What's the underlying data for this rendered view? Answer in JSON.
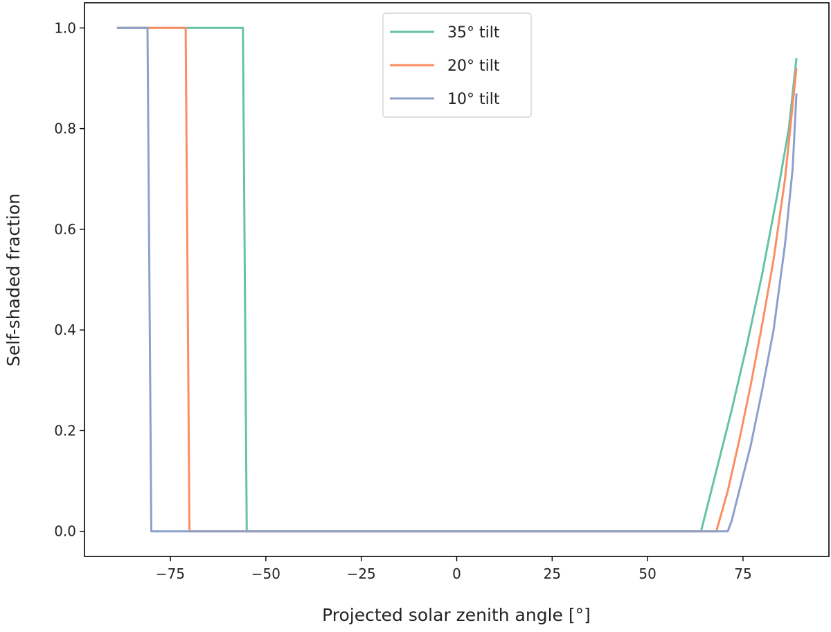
{
  "chart_data": {
    "type": "line",
    "xlabel": "Projected solar zenith angle [°]",
    "ylabel": "Self-shaded fraction",
    "xlim": [
      -97.5,
      97.5
    ],
    "ylim": [
      -0.05,
      1.05
    ],
    "xticks": [
      -75,
      -50,
      -25,
      0,
      25,
      50,
      75
    ],
    "xtick_labels": [
      "−75",
      "−50",
      "−25",
      "0",
      "25",
      "50",
      "75"
    ],
    "yticks": [
      0.0,
      0.2,
      0.4,
      0.6,
      0.8,
      1.0
    ],
    "ytick_labels": [
      "0.0",
      "0.2",
      "0.4",
      "0.6",
      "0.8",
      "1.0"
    ],
    "grid": false,
    "legend_position": "top-center",
    "series": [
      {
        "name": "35° tilt",
        "color": "#66c2a5",
        "points": [
          [
            -89,
            1.0
          ],
          [
            -56,
            1.0
          ],
          [
            -55,
            0.0
          ],
          [
            64,
            0.0
          ],
          [
            68,
            0.12
          ],
          [
            72,
            0.24
          ],
          [
            76,
            0.37
          ],
          [
            80,
            0.51
          ],
          [
            84,
            0.67
          ],
          [
            87,
            0.8
          ],
          [
            89,
            0.94
          ]
        ]
      },
      {
        "name": "20° tilt",
        "color": "#fc8d62",
        "points": [
          [
            -89,
            1.0
          ],
          [
            -71,
            1.0
          ],
          [
            -70,
            0.0
          ],
          [
            68,
            0.0
          ],
          [
            71,
            0.08
          ],
          [
            74,
            0.18
          ],
          [
            77,
            0.29
          ],
          [
            80,
            0.41
          ],
          [
            83,
            0.54
          ],
          [
            86,
            0.7
          ],
          [
            89,
            0.92
          ]
        ]
      },
      {
        "name": "10° tilt",
        "color": "#8da0cb",
        "points": [
          [
            -89,
            1.0
          ],
          [
            -81,
            1.0
          ],
          [
            -80,
            0.0
          ],
          [
            71,
            0.0
          ],
          [
            72,
            0.02
          ],
          [
            74,
            0.08
          ],
          [
            77,
            0.17
          ],
          [
            80,
            0.28
          ],
          [
            83,
            0.4
          ],
          [
            86,
            0.57
          ],
          [
            88,
            0.72
          ],
          [
            89,
            0.87
          ]
        ]
      }
    ]
  }
}
